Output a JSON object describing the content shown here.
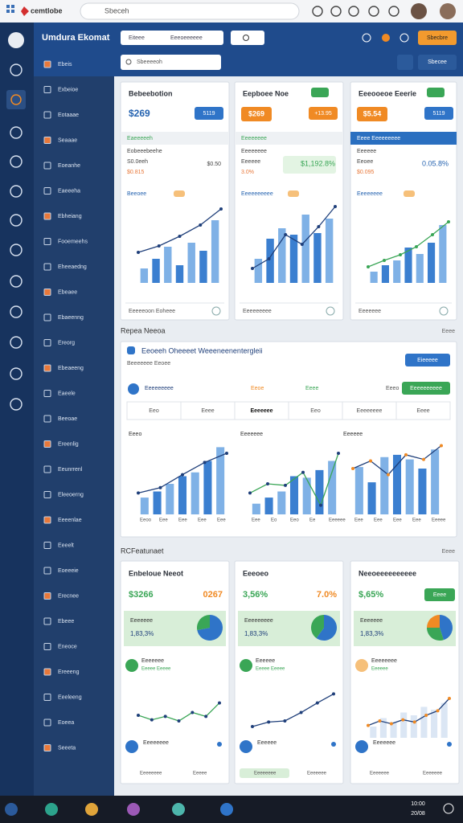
{
  "browser": {
    "brand": "cemtlobe",
    "address": "Sbeceh"
  },
  "header": {
    "title": "Umdura Ekomat",
    "field_label": "Eiteee",
    "field_value": "Eeeoeeeeee",
    "search": "Sbeeeeoh",
    "action": "Sbecbre",
    "filter": "Sbecee"
  },
  "sidebar": {
    "items": [
      "Ebeis",
      "Exbeioe",
      "Eotaaae",
      "Seaaae",
      "Eoeanhe",
      "Eaeeeha",
      "Ebheiang",
      "Fooemeehs",
      "Eheeaedng",
      "Ebeaee",
      "Ebaeenng",
      "Ereorg",
      "Ebeaeeng",
      "Eaeele",
      "Beeoae",
      "Ereenlig",
      "Eeunrrenl",
      "Eleeoerng",
      "Eeeenlae",
      "Eeeelt",
      "Eoeeeie",
      "Erecnee",
      "Ebeee",
      "Eneoce",
      "Ereeeng",
      "Eeeleeng",
      "Eoeea",
      "Seeeta"
    ]
  },
  "row1": {
    "cards": [
      {
        "title": "Bebeebotion",
        "value": "$269",
        "badge": "5119",
        "panel": "Eaeeeeeh",
        "rows": [
          "Eobeeebeehe",
          "S0.0eeh",
          "$0.815"
        ],
        "aside": "$0.50",
        "legend": "Beeoee",
        "footer": "Eeeeeoon Eoheee",
        "chart": {
          "ylim": [
            0,
            100
          ],
          "bars": [
            18,
            30,
            45,
            22,
            50,
            40,
            78
          ],
          "line": [
            38,
            46,
            58,
            72,
            92
          ]
        }
      },
      {
        "title": "Eepboee Noe",
        "value": "$269",
        "badge": "+13.95",
        "panel": "Eeeeeeee",
        "rows": [
          "Eeeeeeee",
          "Eeeeee",
          "3.0%"
        ],
        "aside": "$1,192.8%",
        "legend": "Eeeeeeeeee",
        "footer": "Eeeeeeeee",
        "chart": {
          "ylim": [
            0,
            100
          ],
          "bars": [
            30,
            55,
            68,
            60,
            85,
            62,
            80
          ],
          "line": [
            18,
            30,
            60,
            48,
            70,
            95
          ]
        }
      },
      {
        "title": "Eeeooeoe Eeerie",
        "value": "$5.54",
        "badge": "5119",
        "panel": "Eeee Eeeeeeeee",
        "rows": [
          "Eeeeee",
          "Eeoee",
          "$0.095"
        ],
        "aside": "0.05.8%",
        "legend": "Eeeeeeee",
        "footer": "Eeeeeee",
        "chart": {
          "ylim": [
            0,
            100
          ],
          "bars": [
            14,
            22,
            28,
            44,
            36,
            50,
            72
          ],
          "line": [
            20,
            28,
            35,
            45,
            60,
            76
          ]
        }
      }
    ]
  },
  "section1": {
    "title": "Repea Neeoa",
    "more": "Eeee"
  },
  "panel": {
    "title": "Eeoeeh Oheeeet Weeeneenentergleii",
    "subtitle": "Beeeeeee Eeoee",
    "primary": "Eieeeee",
    "secondary": "Eeeeeeeeee",
    "legend": [
      "Eeeeeeeee",
      "Eeoe",
      "Eeee",
      "Eeeo"
    ],
    "tabs": [
      "Eeo",
      "Eeee",
      "Eeeeeee",
      "Eeo",
      "Eeeeeeee",
      "Eeee"
    ],
    "charts": [
      {
        "title": "Eeeo",
        "labels": [
          "Eeoo",
          "Eee",
          "Eee",
          "Eee",
          "Eee"
        ],
        "ylim": [
          0,
          100
        ],
        "bars": [
          22,
          30,
          40,
          50,
          55,
          70,
          88
        ],
        "line": [
          28,
          35,
          52,
          68,
          80
        ]
      },
      {
        "title": "Eeeeeee",
        "labels": [
          "Eee",
          "Eo",
          "Eeo",
          "Ee",
          "Eeeeee"
        ],
        "ylim": [
          0,
          100
        ],
        "bars": [
          14,
          22,
          30,
          50,
          48,
          58,
          70
        ],
        "line": [
          28,
          40,
          38,
          55,
          12,
          80
        ]
      },
      {
        "title": "Eeeeee",
        "labels": [
          "Eee",
          "Eee",
          "Eee",
          "Eee",
          "Eeeee"
        ],
        "ylim": [
          0,
          100
        ],
        "bars": [
          62,
          42,
          75,
          78,
          72,
          60,
          85
        ],
        "line": [
          60,
          70,
          52,
          78,
          72,
          90
        ]
      }
    ]
  },
  "section2": {
    "title": "RCFeatunaet",
    "more": "Eeee"
  },
  "row3": {
    "cards": [
      {
        "title": "Enbeloue Neeot",
        "value": "$3266",
        "value2": "0267",
        "band": "Eeeeeee",
        "band_value": "1,83,3%",
        "pie": [
          72,
          28
        ],
        "legend": "Eeeeeee",
        "legend_sub": "Eeeee Eeeee",
        "footer": "Eeeeeeee",
        "strip": [
          "Eeeeeeee",
          "Eeeee"
        ],
        "chart": {
          "ylim": [
            0,
            100
          ],
          "line": [
            40,
            32,
            38,
            30,
            45,
            38,
            62
          ]
        }
      },
      {
        "title": "Eeeoeo",
        "value": "3,56%",
        "value2": "7.0%",
        "band": "Eeeeeeeee",
        "band_value": "1,83,3%",
        "pie": [
          60,
          40
        ],
        "legend": "Eeeeee",
        "legend_sub": "Eeeee Eeeee",
        "footer": "Eeeeee",
        "strip": [
          "Eeeeeeee",
          "Eeeeeee"
        ],
        "chart": {
          "ylim": [
            0,
            100
          ],
          "line": [
            20,
            28,
            30,
            45,
            62,
            78
          ]
        }
      },
      {
        "title": "Neeoeeeeeeeeee",
        "value": "$,65%",
        "value2": "Eeee",
        "band": "Eeeeeee",
        "band_value": "1,83,3%",
        "pie": [
          45,
          30,
          25
        ],
        "legend": "Eeeeeeee",
        "legend_sub": "Eeeeee",
        "footer": "Eeeeeee",
        "strip": [
          "Eeeeeee",
          "Eeeeeee"
        ],
        "chart": {
          "ylim": [
            0,
            100
          ],
          "bars": [
            20,
            35,
            28,
            45,
            40,
            55,
            50,
            62
          ],
          "line": [
            22,
            30,
            25,
            32,
            28,
            40,
            48,
            70
          ]
        }
      }
    ]
  },
  "taskbar": {
    "time": "10:00",
    "date": "20/08"
  }
}
